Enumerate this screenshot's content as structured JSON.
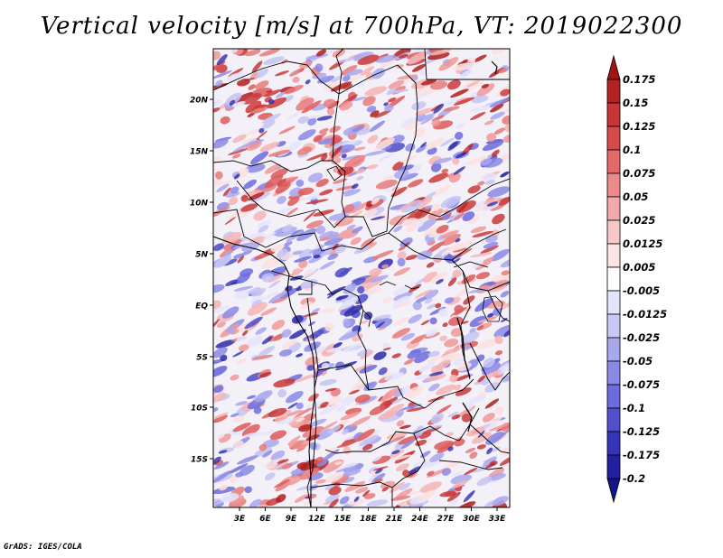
{
  "title": "Vertical velocity [m/s] at 700hPa, VT: 2019022300",
  "credit": "GrADS: IGES/COLA",
  "map": {
    "region": "Central Africa",
    "lat_labels": [
      "20N",
      "15N",
      "10N",
      "5N",
      "EQ",
      "5S",
      "10S",
      "15S"
    ],
    "lon_labels": [
      "3E",
      "6E",
      "9E",
      "12E",
      "15E",
      "18E",
      "21E",
      "24E",
      "27E",
      "30E",
      "33E"
    ]
  },
  "colorbar": {
    "labels": [
      "0.175",
      "0.15",
      "0.125",
      "0.1",
      "0.075",
      "0.05",
      "0.025",
      "0.0125",
      "0.005",
      "-0.005",
      "-0.0125",
      "-0.025",
      "-0.05",
      "-0.075",
      "-0.1",
      "-0.125",
      "-0.175",
      "-0.2"
    ],
    "colors": [
      "#a01515",
      "#b52222",
      "#c83535",
      "#d84a4a",
      "#e46a6a",
      "#ec8a8a",
      "#f3a9a9",
      "#f8c8c8",
      "#fce4e4",
      "#ffffff",
      "#e4e4fb",
      "#c8c8f5",
      "#a8a8ef",
      "#8a8ae6",
      "#6c6cdc",
      "#5050cc",
      "#3535b8",
      "#2020a0",
      "#14148a"
    ]
  },
  "field_colors": {
    "positive": "#e06060",
    "negative": "#6060e0",
    "strong_positive": "#b82020",
    "strong_negative": "#2525a5",
    "background": "#f4f0f8"
  }
}
